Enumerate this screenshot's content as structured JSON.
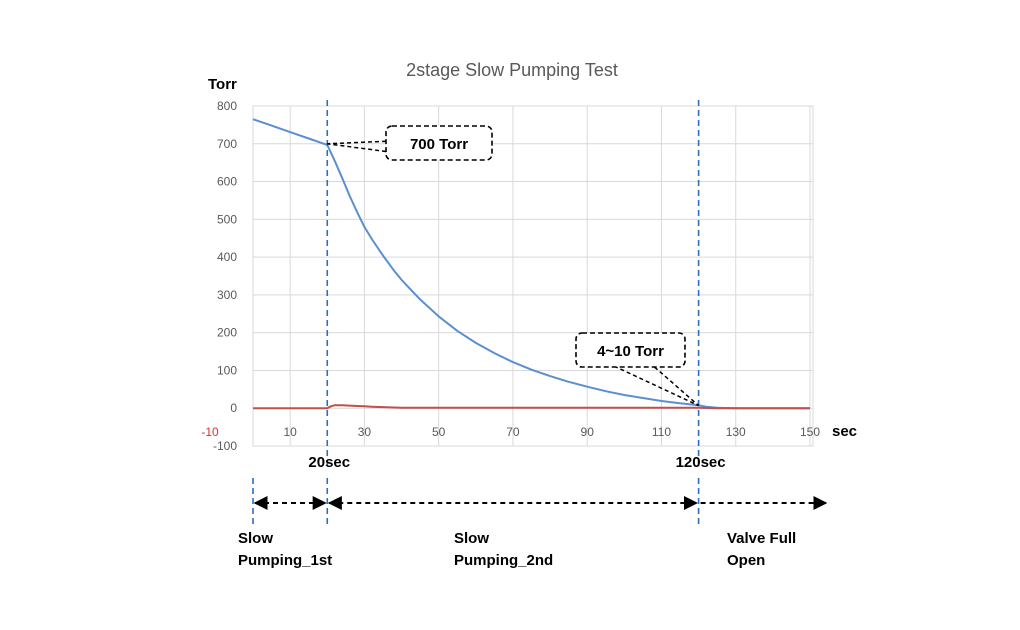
{
  "chart_data": {
    "type": "line",
    "title": "2stage Slow  Pumping Test",
    "ylabel": "Torr",
    "xlabel": "sec",
    "xlim": [
      0,
      150
    ],
    "ylim": [
      -100,
      800
    ],
    "grid": true,
    "y_ticks": [
      "800",
      "700",
      "600",
      "500",
      "400",
      "300",
      "200",
      "100",
      "0",
      "-100"
    ],
    "y_tick_values": [
      800,
      700,
      600,
      500,
      400,
      300,
      200,
      100,
      0,
      -100
    ],
    "x_ticks": [
      "10",
      "30",
      "50",
      "70",
      "90",
      "110",
      "130",
      "150"
    ],
    "x_tick_values": [
      10,
      30,
      50,
      70,
      90,
      110,
      130,
      150
    ],
    "x_extra_tick": {
      "label": "-10",
      "color": "#e03030"
    },
    "series": [
      {
        "color": "#5b8fd0",
        "x": [
          0,
          5,
          10,
          15,
          20,
          22,
          24,
          26,
          28,
          30,
          32,
          35,
          38,
          40,
          45,
          50,
          55,
          60,
          65,
          70,
          75,
          80,
          85,
          90,
          95,
          100,
          105,
          110,
          115,
          120,
          122,
          125,
          130,
          135,
          140,
          145,
          150
        ],
        "values": [
          765,
          748,
          731,
          714,
          697,
          655,
          610,
          563,
          520,
          480,
          448,
          404,
          364,
          340,
          288,
          243,
          205,
          173,
          146,
          122,
          102,
          85,
          70,
          57,
          45,
          35,
          27,
          19,
          13,
          8,
          4,
          1,
          0,
          0,
          0,
          0,
          0
        ]
      },
      {
        "color": "#c0504d",
        "x": [
          0,
          5,
          10,
          15,
          20,
          21,
          22,
          24,
          26,
          28,
          30,
          32,
          35,
          38,
          40,
          60,
          80,
          100,
          120,
          125,
          130,
          135,
          140,
          145,
          150
        ],
        "values": [
          0,
          0,
          0,
          0,
          0,
          5,
          8,
          8,
          7,
          6,
          5,
          4,
          3,
          2,
          1,
          1,
          1,
          1,
          1,
          0,
          0,
          0,
          0,
          0,
          0
        ]
      }
    ],
    "markers": [
      {
        "x": 20,
        "label": "20sec"
      },
      {
        "x": 120,
        "label": "120sec"
      }
    ],
    "annotations": [
      {
        "text": "700 Torr",
        "point": [
          20,
          700
        ]
      },
      {
        "text": "4~10 Torr",
        "point": [
          120,
          7
        ]
      }
    ],
    "phases": [
      {
        "line1": "Slow",
        "line2": "Pumping_1st"
      },
      {
        "line1": "Slow",
        "line2": "Pumping_2nd"
      },
      {
        "line1": "Valve Full",
        "line2": "Open"
      }
    ]
  },
  "colors": {
    "grid": "#d9d9d9",
    "marker_line": "#2e6ebf",
    "title": "#595959"
  }
}
